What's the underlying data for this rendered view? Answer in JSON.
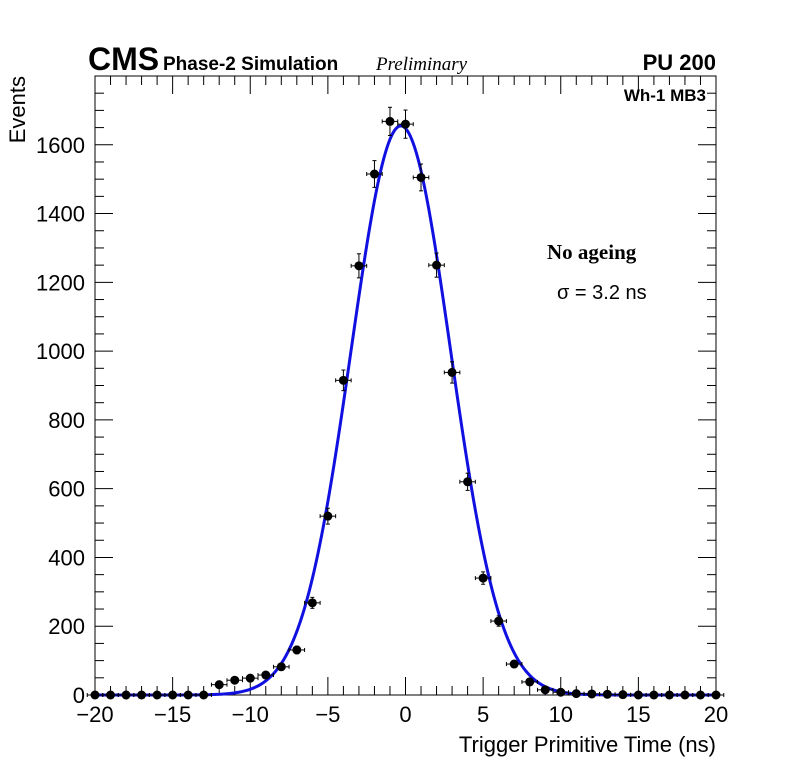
{
  "header": {
    "experiment": "CMS",
    "subtitle": "Phase-2 Simulation",
    "status": "Preliminary",
    "pileup": "PU 200"
  },
  "chart_data": {
    "type": "scatter",
    "title": "",
    "xlabel": "Trigger Primitive Time (ns)",
    "ylabel": "Events",
    "xlim": [
      -20,
      20
    ],
    "ylim": [
      0,
      1800
    ],
    "xticks": [
      -20,
      -15,
      -10,
      -5,
      0,
      5,
      10,
      15,
      20
    ],
    "xtick_labels": [
      "−20",
      "−15",
      "−10",
      "−5",
      "0",
      "5",
      "10",
      "15",
      "20"
    ],
    "yticks": [
      0,
      200,
      400,
      600,
      800,
      1000,
      1200,
      1400,
      1600
    ],
    "ytick_labels": [
      "0",
      "200",
      "400",
      "600",
      "800",
      "1000",
      "1200",
      "1400",
      "1600"
    ],
    "grid": false,
    "annotations": {
      "region": "Wh-1 MB3",
      "condition": "No ageing",
      "fit_result": "σ = 3.2 ns"
    },
    "series": [
      {
        "name": "Simulation",
        "kind": "points_with_errors",
        "color": "#000000",
        "bin_half_width": 0.5,
        "x": [
          -20,
          -19,
          -18,
          -17,
          -16,
          -15,
          -14,
          -13,
          -12,
          -11,
          -10,
          -9,
          -8,
          -7,
          -6,
          -5,
          -4,
          -3,
          -2,
          -1,
          0,
          1,
          2,
          3,
          4,
          5,
          6,
          7,
          8,
          9,
          10,
          11,
          12,
          13,
          14,
          15,
          16,
          17,
          18,
          19,
          20
        ],
        "y": [
          0,
          0,
          0,
          0,
          0,
          0,
          0,
          0,
          30,
          43,
          49,
          58,
          82,
          131,
          268,
          520,
          915,
          1248,
          1515,
          1668,
          1660,
          1505,
          1250,
          938,
          620,
          340,
          215,
          90,
          38,
          15,
          8,
          4,
          3,
          2,
          1,
          0,
          0,
          0,
          0,
          0,
          0
        ],
        "y_err": [
          0,
          0,
          0,
          0,
          0,
          0,
          0,
          0,
          5,
          7,
          7,
          8,
          9,
          11,
          16,
          23,
          30,
          35,
          39,
          41,
          41,
          39,
          35,
          31,
          25,
          18,
          15,
          9,
          6,
          4,
          3,
          2,
          2,
          1,
          1,
          0,
          0,
          0,
          0,
          0,
          0
        ]
      },
      {
        "name": "Gaussian fit",
        "kind": "curve",
        "color": "#1010e0",
        "function": "gaussian",
        "amplitude": 1655,
        "mean": -0.3,
        "sigma": 3.2
      }
    ]
  }
}
